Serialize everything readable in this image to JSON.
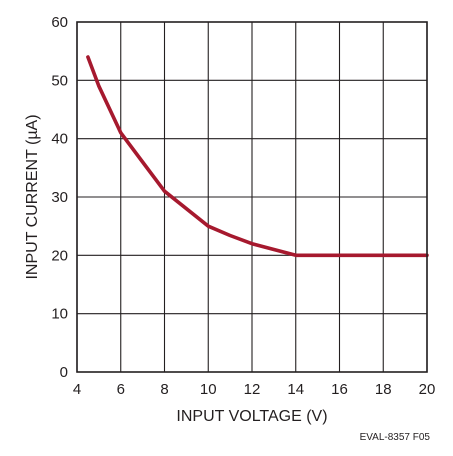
{
  "chart_data": {
    "type": "line",
    "xlabel": "INPUT VOLTAGE (V)",
    "ylabel": "INPUT CURRENT (µA)",
    "xlim": [
      4,
      20
    ],
    "ylim": [
      0,
      60
    ],
    "xticks": [
      4,
      6,
      8,
      10,
      12,
      14,
      16,
      18,
      20
    ],
    "yticks": [
      0,
      10,
      20,
      30,
      40,
      50,
      60
    ],
    "grid": true,
    "annotation": "EVAL-8357 F05",
    "series": [
      {
        "color": "#a6192e",
        "x": [
          4.5,
          5,
          6,
          7,
          8,
          9,
          10,
          11,
          12,
          13,
          14,
          15,
          16,
          18,
          20
        ],
        "y": [
          54,
          49,
          41,
          36,
          31,
          28,
          25,
          23.4,
          22,
          21,
          20,
          20,
          20,
          20,
          20
        ]
      }
    ]
  },
  "colors": {
    "grid": "#231f20",
    "frame": "#231f20",
    "text": "#231f20"
  }
}
